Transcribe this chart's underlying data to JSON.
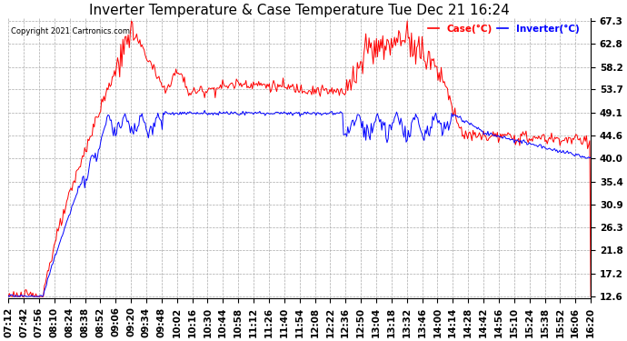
{
  "title": "Inverter Temperature & Case Temperature Tue Dec 21 16:24",
  "copyright": "Copyright 2021 Cartronics.com",
  "legend_case": "Case(°C)",
  "legend_inverter": "Inverter(°C)",
  "case_color": "red",
  "inverter_color": "blue",
  "yticks": [
    12.6,
    17.2,
    21.8,
    26.3,
    30.9,
    35.4,
    40.0,
    44.6,
    49.1,
    53.7,
    58.2,
    62.8,
    67.3
  ],
  "ymin": 12.6,
  "ymax": 67.3,
  "background_color": "#ffffff",
  "grid_color": "#aaaaaa",
  "title_fontsize": 11,
  "tick_fontsize": 7.5,
  "xtick_labels": [
    "07:12",
    "07:42",
    "07:56",
    "08:10",
    "08:24",
    "08:38",
    "08:52",
    "09:06",
    "09:20",
    "09:34",
    "09:48",
    "10:02",
    "10:16",
    "10:30",
    "10:44",
    "10:58",
    "11:12",
    "11:26",
    "11:40",
    "11:54",
    "12:08",
    "12:22",
    "12:36",
    "12:50",
    "13:04",
    "13:18",
    "13:32",
    "13:46",
    "14:00",
    "14:14",
    "14:28",
    "14:42",
    "14:56",
    "15:10",
    "15:24",
    "15:38",
    "15:52",
    "16:06",
    "16:20"
  ]
}
